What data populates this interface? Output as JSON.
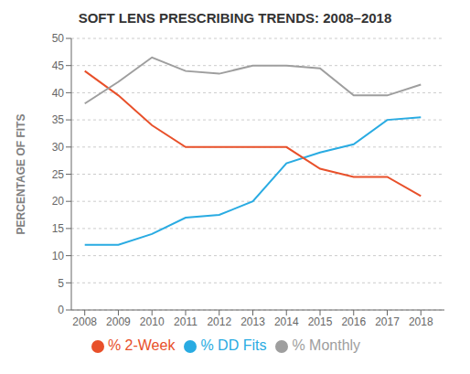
{
  "chart_data": {
    "type": "line",
    "title": "SOFT LENS PRESCRIBING TRENDS: 2008–2018",
    "ylabel": "PERCENTAGE OF FITS",
    "x": [
      2008,
      2009,
      2010,
      2011,
      2012,
      2013,
      2014,
      2015,
      2016,
      2017,
      2018
    ],
    "series": [
      {
        "name": "% DD Fits",
        "color": "#29ABE2",
        "values": [
          12,
          12,
          14,
          17,
          17.5,
          20,
          27,
          29,
          30.5,
          35,
          35.5
        ]
      },
      {
        "name": "% 2-Week",
        "color": "#E8502A",
        "values": [
          44,
          39.5,
          34,
          30,
          30,
          30,
          30,
          26,
          24.5,
          24.5,
          21
        ]
      },
      {
        "name": "% Monthly",
        "color": "#9E9E9E",
        "values": [
          38,
          42,
          46.5,
          44,
          43.5,
          45,
          45,
          44.5,
          39.5,
          39.5,
          41.5
        ]
      }
    ],
    "xlim": [
      2007.6,
      2018.7
    ],
    "xticks": [
      2008,
      2009,
      2010,
      2011,
      2012,
      2013,
      2014,
      2015,
      2016,
      2017,
      2018
    ],
    "ylim": [
      0,
      50
    ],
    "yticks": [
      0,
      5,
      10,
      15,
      20,
      25,
      30,
      35,
      40,
      45,
      50
    ],
    "grid": true,
    "legend": "bottom"
  }
}
